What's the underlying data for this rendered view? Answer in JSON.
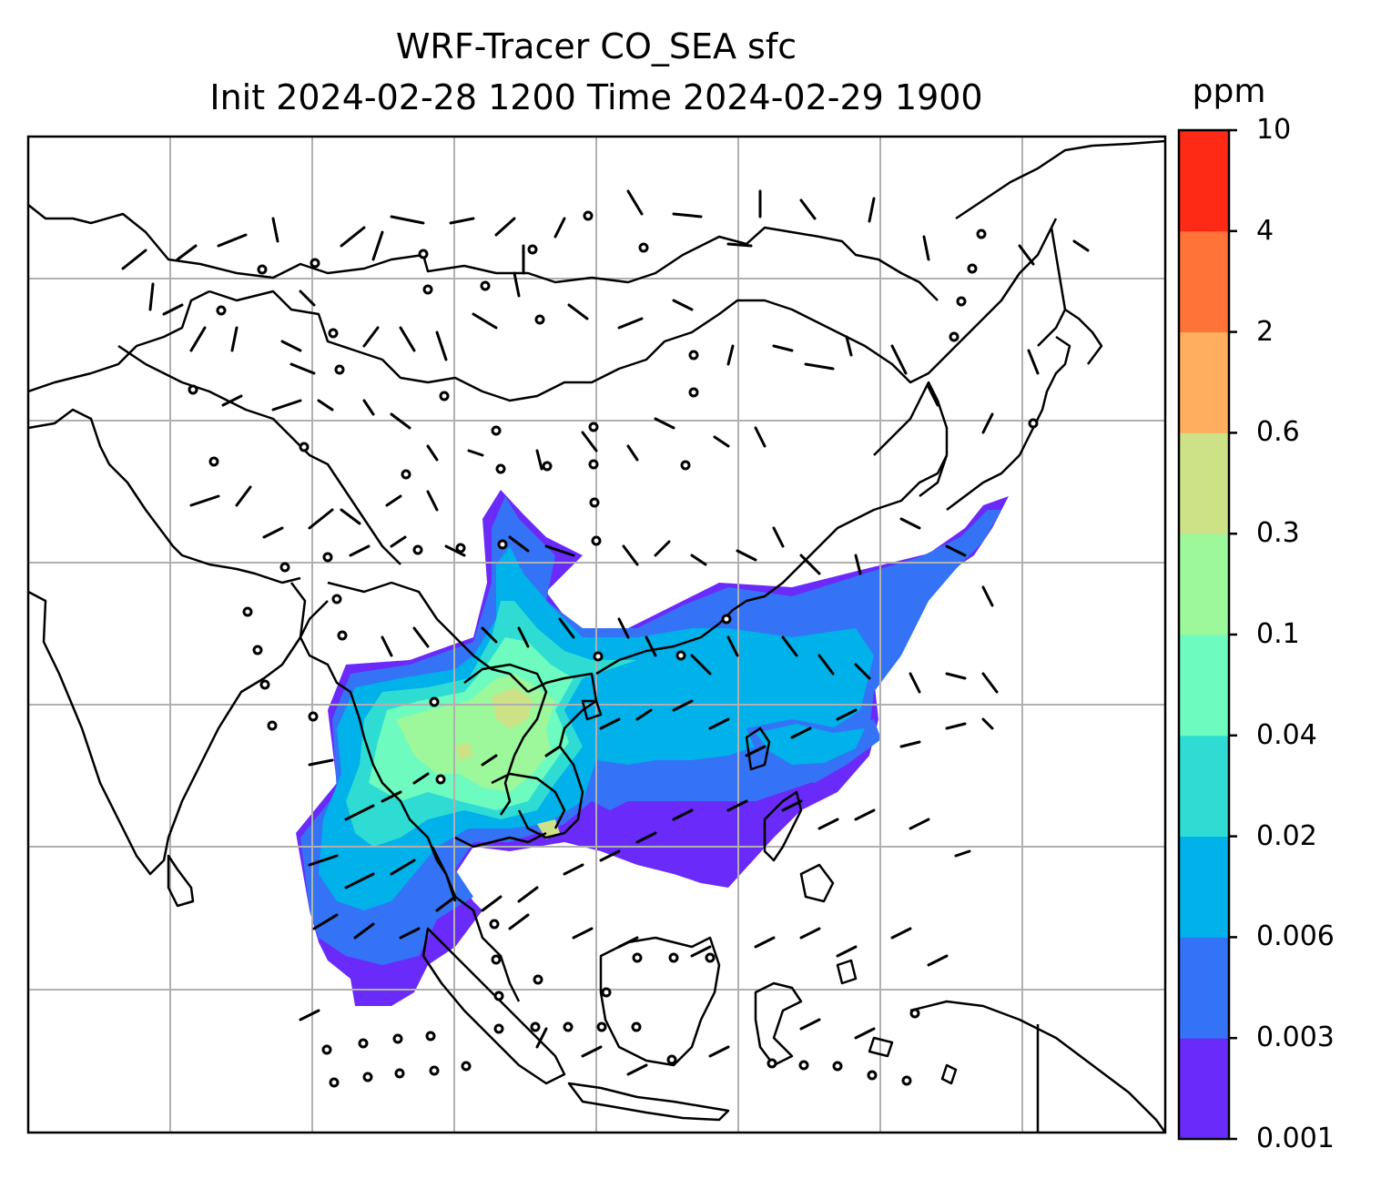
{
  "title": {
    "line1": "WRF-Tracer CO_SEA sfc",
    "line2": "Init 2024-02-28 1200 Time 2024-02-29 1900"
  },
  "colorbar": {
    "unit": "ppm",
    "levels": [
      "0.001",
      "0.003",
      "0.006",
      "0.02",
      "0.04",
      "0.1",
      "0.3",
      "0.6",
      "2",
      "4",
      "10"
    ],
    "colors": [
      "#6a2bfa",
      "#3473f5",
      "#00b1ea",
      "#2fdcd3",
      "#6dfbbf",
      "#9cf89b",
      "#cde287",
      "#ffae5f",
      "#ff7238",
      "#ff2a16"
    ]
  },
  "map": {
    "gridlines": true,
    "grid_color": "#b0b0b0",
    "coastline_color": "#000000",
    "field": "CO tracer concentration with wind barbs"
  }
}
